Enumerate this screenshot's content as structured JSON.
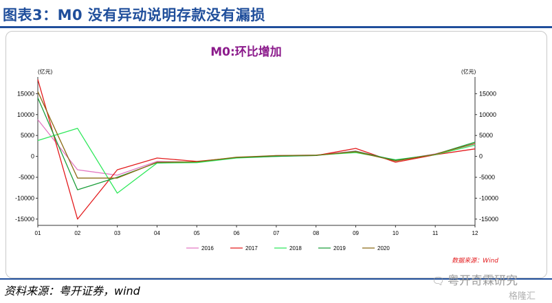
{
  "header": {
    "title": "图表3：M0 没有异动说明存款没有漏损"
  },
  "footer": {
    "source": "资料来源：粤开证券，wind"
  },
  "watermark": {
    "text": "粤开奇霖研究",
    "sub": "格隆汇",
    "icon": "wechat-icon"
  },
  "chart_data": {
    "type": "line",
    "title": "M0:环比增加",
    "title_color": "#8b1a8b",
    "ylabel_left": "(亿元)",
    "ylabel_right": "(亿元)",
    "ylim": [
      -16500,
      19000
    ],
    "yticks": [
      -15000,
      -10000,
      -5000,
      0,
      5000,
      10000,
      15000
    ],
    "ytick_labels": [
      "-15000",
      "-10000",
      "-5000",
      "0",
      "5000",
      "10000",
      "15000"
    ],
    "categories": [
      "01",
      "02",
      "03",
      "04",
      "05",
      "06",
      "07",
      "08",
      "09",
      "10",
      "11",
      "12"
    ],
    "grid": false,
    "legend_position": "bottom",
    "source_note": "数据来源：Wind",
    "series": [
      {
        "name": "2016",
        "color": "#e377c2",
        "values": [
          8800,
          -3200,
          -4500,
          -1200,
          -1400,
          -300,
          200,
          300,
          1300,
          -1000,
          600,
          3000
        ]
      },
      {
        "name": "2017",
        "color": "#e31a1c",
        "values": [
          18400,
          -15000,
          -3200,
          -400,
          -1200,
          -300,
          100,
          200,
          1900,
          -1400,
          400,
          1800
        ]
      },
      {
        "name": "2018",
        "color": "#2ee85a",
        "values": [
          3800,
          6700,
          -8800,
          -1600,
          -1500,
          -400,
          0,
          300,
          900,
          -800,
          400,
          2700
        ]
      },
      {
        "name": "2019",
        "color": "#1a9e3a",
        "values": [
          14000,
          -8000,
          -5000,
          -1500,
          -1300,
          -300,
          0,
          200,
          1200,
          -900,
          500,
          3400
        ]
      },
      {
        "name": "2020",
        "color": "#8b6914",
        "values": [
          15500,
          -5200,
          -5200,
          -1400,
          -1300,
          -200,
          200,
          300,
          1100,
          -1100,
          500,
          3100
        ]
      }
    ]
  }
}
